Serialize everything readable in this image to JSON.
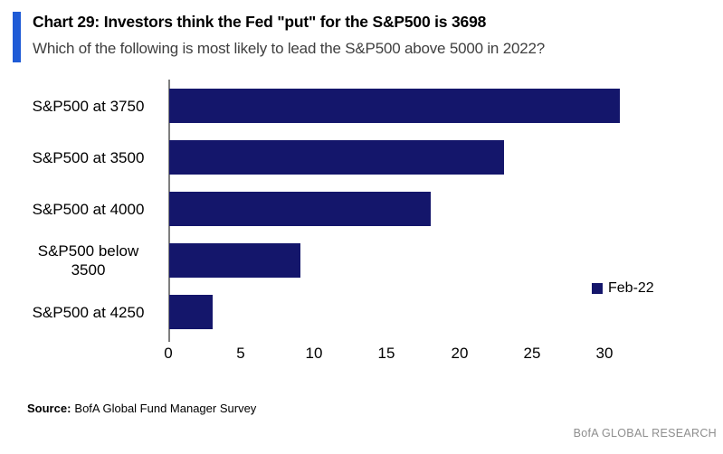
{
  "header": {
    "title": "Chart 29: Investors think the Fed \"put\" for the S&P500 is 3698",
    "subtitle": "Which of the following is most likely to lead the S&P500 above 5000 in 2022?",
    "accent_color": "#1f5bd6"
  },
  "chart_data": {
    "type": "bar",
    "orientation": "horizontal",
    "title": "Chart 29: Investors think the Fed \"put\" for the S&P500 is 3698",
    "subtitle": "Which of the following is most likely to lead the S&P500 above 5000 in 2022?",
    "categories": [
      "S&P500 at 3750",
      "S&P500 at 3500",
      "S&P500 at 4000",
      "S&P500 below 3500",
      "S&P500 at 4250"
    ],
    "values": [
      31,
      23,
      18,
      9,
      3
    ],
    "series_name": "Feb-22",
    "xlim": [
      0,
      35
    ],
    "xticks": [
      0,
      5,
      10,
      15,
      20,
      25,
      30
    ],
    "bar_color": "#14166b",
    "axis_color": "#7f7f7f",
    "grid": false,
    "legend_position": "right"
  },
  "footer": {
    "source_label": "Source:",
    "source_text": "BofA Global Fund Manager Survey",
    "branding": "BofA GLOBAL RESEARCH"
  }
}
